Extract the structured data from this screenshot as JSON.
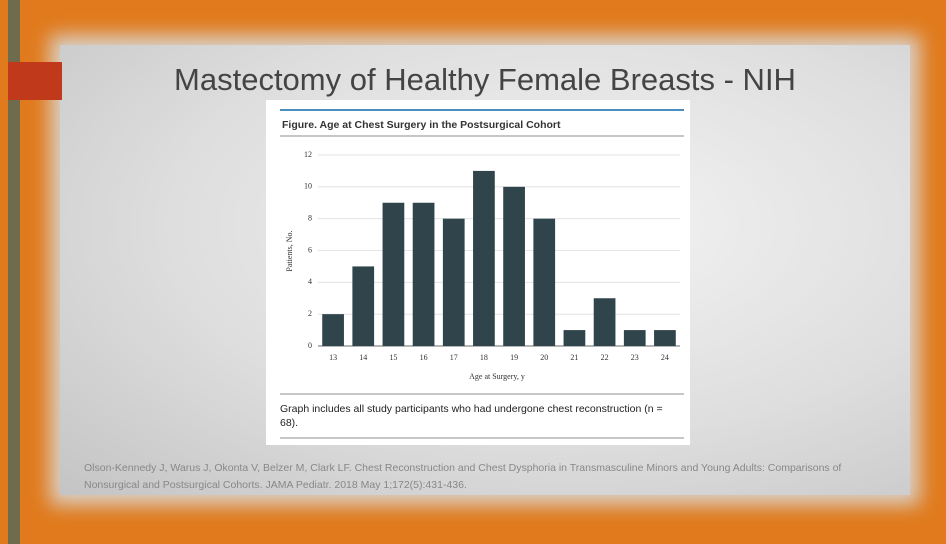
{
  "slide": {
    "title": "Mastectomy of Healthy Female Breasts - NIH",
    "citation": "Olson-Kennedy J, Warus J, Okonta V, Belzer M, Clark LF.  Chest Reconstruction and Chest Dysphoria in Transmasculine Minors and Young Adults: Comparisons of Nonsurgical and Postsurgical Cohorts. JAMA Pediatr. 2018 May 1;172(5):431-436.",
    "note": "Graph includes all study participants who had undergone chest reconstruction (n = 68)."
  },
  "chart_data": {
    "type": "bar",
    "title": "Figure. Age at Chest Surgery in the Postsurgical Cohort",
    "x_label": "Age at Surgery, y",
    "y_label": "Patients, No.",
    "categories": [
      "13",
      "14",
      "15",
      "16",
      "17",
      "18",
      "19",
      "20",
      "21",
      "22",
      "23",
      "24"
    ],
    "values": [
      2,
      5,
      9,
      9,
      8,
      11,
      10,
      8,
      1,
      3,
      1,
      1
    ],
    "color": "#2f444b",
    "ylim": [
      0,
      12
    ],
    "yticks": [
      0,
      2,
      4,
      6,
      8,
      10,
      12
    ],
    "grid": true
  }
}
